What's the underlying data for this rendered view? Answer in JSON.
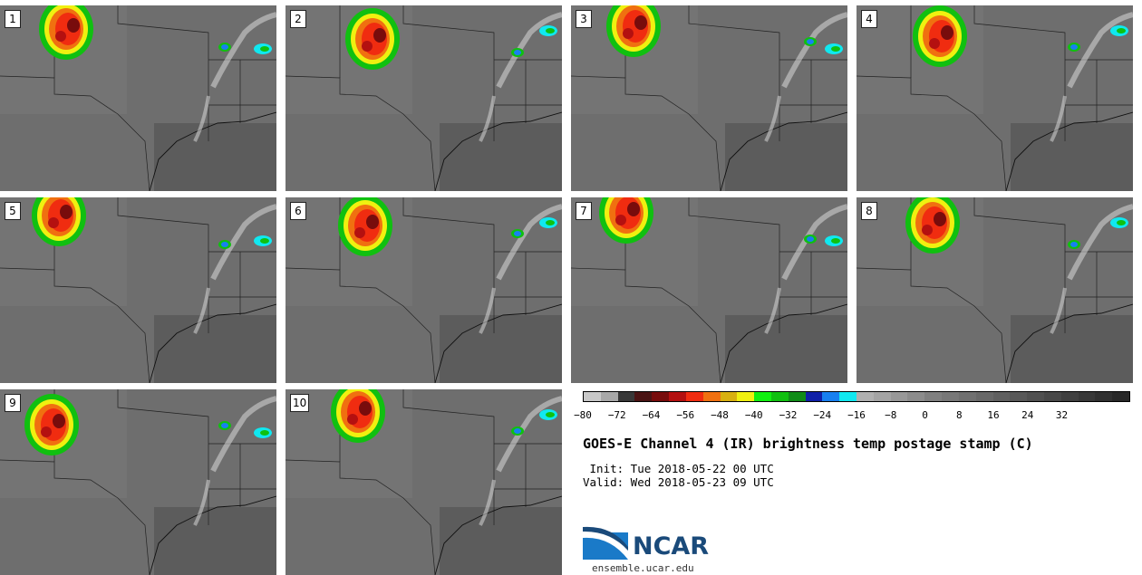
{
  "panels": [
    {
      "label": "1"
    },
    {
      "label": "2"
    },
    {
      "label": "3"
    },
    {
      "label": "4"
    },
    {
      "label": "5"
    },
    {
      "label": "6"
    },
    {
      "label": "7"
    },
    {
      "label": "8"
    },
    {
      "label": "9"
    },
    {
      "label": "10"
    }
  ],
  "colorbar": {
    "ticks": [
      "−80",
      "−72",
      "−64",
      "−56",
      "−48",
      "−40",
      "−32",
      "−24",
      "−16",
      "−8",
      "0",
      "8",
      "16",
      "24",
      "32"
    ],
    "colors": [
      "#c8c8c8",
      "#a8a8a8",
      "#383838",
      "#4a1414",
      "#780c0c",
      "#b41010",
      "#f02c10",
      "#f07010",
      "#d8b010",
      "#f0f010",
      "#10f010",
      "#10c010",
      "#108c18",
      "#1020a8",
      "#1880f0",
      "#10e8f0",
      "#b0b0b0",
      "#a4a4a4",
      "#989898",
      "#8c8c8c",
      "#808080",
      "#787878",
      "#707070",
      "#686868",
      "#606060",
      "#585858",
      "#505050",
      "#484848",
      "#404040",
      "#383838",
      "#303030",
      "#282828"
    ]
  },
  "title": "GOES-E Channel 4 (IR) brightness temp postage stamp (C)",
  "init_line": " Init: Tue 2018-05-22 00 UTC",
  "valid_line": "Valid: Wed 2018-05-23 09 UTC",
  "logo": {
    "text": "NCAR",
    "colors": {
      "blue": "#1a4a7a",
      "light": "#1a7ac8"
    }
  },
  "url": "ensemble.ucar.edu"
}
